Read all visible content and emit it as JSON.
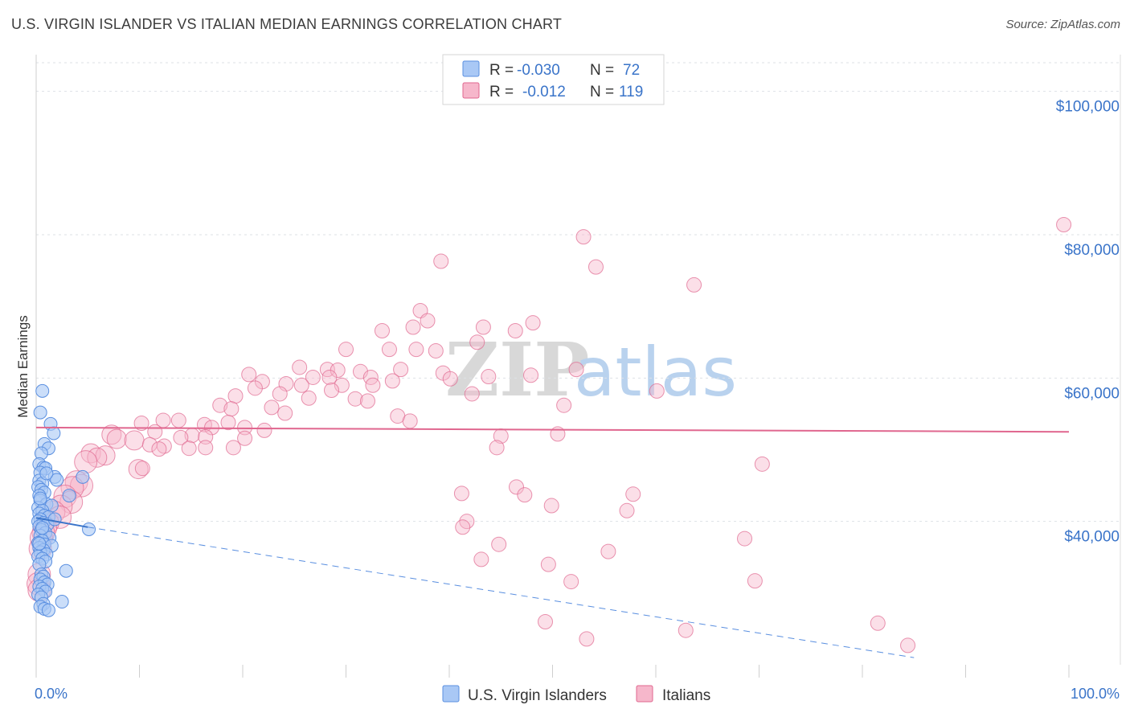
{
  "title": "U.S. VIRGIN ISLANDER VS ITALIAN MEDIAN EARNINGS CORRELATION CHART",
  "source": "Source: ZipAtlas.com",
  "colors": {
    "blue": "#5a8fe0",
    "blue_fill": "#a9c8f5",
    "pink": "#e0678f",
    "pink_fill": "#f6b7cb",
    "grid": "#dde1e6",
    "tick_text": "#3a74c9"
  },
  "legend": {
    "rows": [
      {
        "r_label": "R =",
        "r_value": "-0.030",
        "n_label": "N =",
        "n_value": "72"
      },
      {
        "r_label": "R =",
        "r_value": "-0.012",
        "n_label": "N =",
        "n_value": "119"
      }
    ]
  },
  "bottom_legend": [
    "U.S. Virgin Islanders",
    "Italians"
  ],
  "watermark": {
    "part1": "ZIP",
    "part2": "atlas"
  },
  "chart_data": {
    "type": "scatter",
    "title": "U.S. VIRGIN ISLANDER VS ITALIAN MEDIAN EARNINGS CORRELATION CHART",
    "xlabel": "",
    "ylabel": "Median Earnings",
    "xlim": [
      0,
      100
    ],
    "ylim": [
      20000,
      104000
    ],
    "x_tick_labels": [
      "0.0%",
      "100.0%"
    ],
    "y_ticks": [
      40000,
      60000,
      80000,
      100000
    ],
    "y_tick_labels": [
      "$40,000",
      "$60,000",
      "$80,000",
      "$100,000"
    ],
    "grid": true,
    "legend_position": "top-center",
    "series": [
      {
        "name": "U.S. Virgin Islanders",
        "r": -0.03,
        "n": 72,
        "trend_solid": [
          [
            0,
            40500
          ],
          [
            5,
            39200
          ]
        ],
        "trend_dashed": [
          [
            5,
            39200
          ],
          [
            85,
            21000
          ]
        ],
        "points": [
          [
            0.6,
            58200
          ],
          [
            0.4,
            55200
          ],
          [
            1.4,
            53600
          ],
          [
            1.7,
            52300
          ],
          [
            0.8,
            50800
          ],
          [
            1.2,
            50200
          ],
          [
            0.5,
            49500
          ],
          [
            0.3,
            48000
          ],
          [
            0.7,
            47500
          ],
          [
            0.9,
            47400
          ],
          [
            0.4,
            46800
          ],
          [
            1.8,
            46200
          ],
          [
            2.0,
            45800
          ],
          [
            0.3,
            45700
          ],
          [
            0.6,
            45300
          ],
          [
            4.5,
            46200
          ],
          [
            0.2,
            44800
          ],
          [
            0.5,
            44400
          ],
          [
            0.8,
            44000
          ],
          [
            0.3,
            43600
          ],
          [
            3.2,
            43600
          ],
          [
            0.4,
            42900
          ],
          [
            1.0,
            42400
          ],
          [
            1.5,
            42200
          ],
          [
            0.2,
            41900
          ],
          [
            0.6,
            41500
          ],
          [
            0.3,
            41100
          ],
          [
            0.8,
            40800
          ],
          [
            1.2,
            40600
          ],
          [
            0.4,
            40300
          ],
          [
            0.2,
            40000
          ],
          [
            0.7,
            39800
          ],
          [
            1.1,
            39600
          ],
          [
            5.1,
            38900
          ],
          [
            0.3,
            39300
          ],
          [
            0.5,
            38800
          ],
          [
            0.9,
            38400
          ],
          [
            0.4,
            38000
          ],
          [
            1.3,
            37700
          ],
          [
            0.6,
            37300
          ],
          [
            0.2,
            37000
          ],
          [
            0.8,
            36800
          ],
          [
            1.5,
            36600
          ],
          [
            0.3,
            36300
          ],
          [
            0.7,
            36000
          ],
          [
            0.4,
            35700
          ],
          [
            1.0,
            35400
          ],
          [
            0.2,
            35100
          ],
          [
            0.6,
            34800
          ],
          [
            0.9,
            34400
          ],
          [
            0.3,
            34000
          ],
          [
            2.9,
            33100
          ],
          [
            0.5,
            32600
          ],
          [
            0.7,
            32300
          ],
          [
            0.4,
            31900
          ],
          [
            0.8,
            31500
          ],
          [
            1.1,
            31200
          ],
          [
            0.3,
            30900
          ],
          [
            0.6,
            30600
          ],
          [
            0.9,
            30200
          ],
          [
            0.2,
            29800
          ],
          [
            0.5,
            29400
          ],
          [
            2.5,
            28800
          ],
          [
            0.7,
            28500
          ],
          [
            0.4,
            28100
          ],
          [
            0.8,
            27800
          ],
          [
            1.2,
            27600
          ],
          [
            0.3,
            36900
          ],
          [
            0.6,
            39100
          ],
          [
            1.8,
            40300
          ],
          [
            0.4,
            43200
          ],
          [
            1.0,
            46700
          ]
        ]
      },
      {
        "name": "Italians",
        "r": -0.012,
        "n": 119,
        "trend_solid": [
          [
            0,
            53100
          ],
          [
            100,
            52500
          ]
        ],
        "points": [
          [
            99.5,
            81400
          ],
          [
            53.0,
            79700
          ],
          [
            54.2,
            75500
          ],
          [
            39.2,
            76300
          ],
          [
            63.7,
            73000
          ],
          [
            37.2,
            69400
          ],
          [
            37.9,
            68000
          ],
          [
            48.1,
            67700
          ],
          [
            36.5,
            67100
          ],
          [
            43.3,
            67100
          ],
          [
            46.4,
            66600
          ],
          [
            33.5,
            66600
          ],
          [
            42.7,
            65000
          ],
          [
            30.0,
            64000
          ],
          [
            34.2,
            64000
          ],
          [
            36.8,
            64000
          ],
          [
            38.7,
            63800
          ],
          [
            25.5,
            61500
          ],
          [
            28.2,
            61200
          ],
          [
            29.2,
            61100
          ],
          [
            35.3,
            61200
          ],
          [
            52.3,
            61200
          ],
          [
            31.4,
            60900
          ],
          [
            39.4,
            60700
          ],
          [
            20.6,
            60500
          ],
          [
            32.4,
            60100
          ],
          [
            26.8,
            60100
          ],
          [
            28.4,
            60100
          ],
          [
            43.8,
            60200
          ],
          [
            47.9,
            60400
          ],
          [
            40.1,
            59900
          ],
          [
            34.5,
            59600
          ],
          [
            21.9,
            59500
          ],
          [
            24.2,
            59200
          ],
          [
            25.7,
            59000
          ],
          [
            29.6,
            59000
          ],
          [
            32.6,
            59000
          ],
          [
            21.2,
            58600
          ],
          [
            28.6,
            58300
          ],
          [
            23.6,
            57800
          ],
          [
            19.3,
            57500
          ],
          [
            30.9,
            57100
          ],
          [
            26.4,
            57200
          ],
          [
            32.1,
            56800
          ],
          [
            42.2,
            57800
          ],
          [
            60.1,
            58200
          ],
          [
            17.8,
            56200
          ],
          [
            18.9,
            55700
          ],
          [
            22.8,
            55900
          ],
          [
            24.1,
            55100
          ],
          [
            35.0,
            54700
          ],
          [
            51.1,
            56200
          ],
          [
            12.3,
            54100
          ],
          [
            13.8,
            54100
          ],
          [
            18.6,
            53800
          ],
          [
            16.3,
            53500
          ],
          [
            17.0,
            53100
          ],
          [
            20.2,
            53100
          ],
          [
            22.1,
            52700
          ],
          [
            36.2,
            54000
          ],
          [
            10.2,
            53700
          ],
          [
            11.5,
            52500
          ],
          [
            7.3,
            52100
          ],
          [
            15.1,
            52000
          ],
          [
            16.4,
            51800
          ],
          [
            14.0,
            51700
          ],
          [
            7.8,
            51500
          ],
          [
            9.5,
            51300
          ],
          [
            20.2,
            51600
          ],
          [
            45.0,
            51900
          ],
          [
            50.5,
            52200
          ],
          [
            11.0,
            50700
          ],
          [
            12.4,
            50500
          ],
          [
            14.8,
            50200
          ],
          [
            11.9,
            50100
          ],
          [
            16.4,
            50300
          ],
          [
            19.1,
            50300
          ],
          [
            44.6,
            50300
          ],
          [
            5.3,
            49500
          ],
          [
            6.7,
            49200
          ],
          [
            5.9,
            48900
          ],
          [
            4.8,
            48300
          ],
          [
            9.9,
            47300
          ],
          [
            10.3,
            47400
          ],
          [
            70.3,
            48000
          ],
          [
            3.9,
            45500
          ],
          [
            4.4,
            45000
          ],
          [
            3.5,
            44700
          ],
          [
            46.5,
            44800
          ],
          [
            47.3,
            43700
          ],
          [
            41.2,
            43900
          ],
          [
            57.8,
            43800
          ],
          [
            2.8,
            43500
          ],
          [
            3.4,
            42700
          ],
          [
            49.9,
            42200
          ],
          [
            2.4,
            42100
          ],
          [
            1.7,
            41300
          ],
          [
            2.3,
            40600
          ],
          [
            57.2,
            41500
          ],
          [
            1.1,
            39800
          ],
          [
            0.9,
            39100
          ],
          [
            0.7,
            38400
          ],
          [
            41.7,
            40000
          ],
          [
            41.3,
            39200
          ],
          [
            68.6,
            37600
          ],
          [
            44.8,
            36800
          ],
          [
            55.4,
            35800
          ],
          [
            0.5,
            37700
          ],
          [
            0.4,
            36200
          ],
          [
            43.1,
            34700
          ],
          [
            49.6,
            34000
          ],
          [
            0.3,
            32600
          ],
          [
            0.2,
            31300
          ],
          [
            69.6,
            31700
          ],
          [
            0.3,
            30400
          ],
          [
            51.8,
            31600
          ],
          [
            49.3,
            26000
          ],
          [
            62.9,
            24800
          ],
          [
            81.5,
            25800
          ],
          [
            53.3,
            23600
          ],
          [
            84.4,
            22700
          ]
        ]
      }
    ]
  }
}
